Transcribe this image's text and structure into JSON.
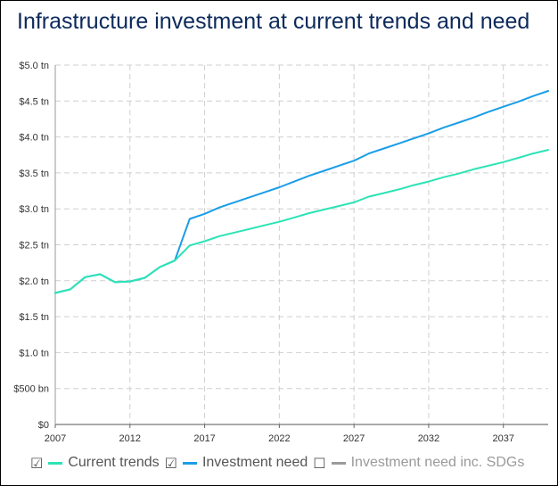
{
  "title": "Infrastructure investment at current trends and need",
  "legend": [
    {
      "label": "Current trends",
      "checkbox": "☑",
      "color": "#2be3b6",
      "active": true
    },
    {
      "label": "Investment need",
      "checkbox": "☑",
      "color": "#1a9de8",
      "active": true
    },
    {
      "label": "Investment need inc. SDGs",
      "checkbox": "☐",
      "color": "#9a9a9a",
      "active": false
    }
  ],
  "chart_data": {
    "type": "line",
    "title": "Infrastructure investment at current trends and need",
    "xlabel": "",
    "ylabel": "",
    "xlim": [
      2007,
      2040
    ],
    "ylim": [
      0,
      5.0
    ],
    "grid": true,
    "legend_position": "bottom",
    "x_ticks": [
      "2007",
      "2012",
      "2017",
      "2022",
      "2027",
      "2032",
      "2037"
    ],
    "y_ticks": [
      "$0",
      "$500 bn",
      "$1.0 tn",
      "$1.5 tn",
      "$2.0 tn",
      "$2.5 tn",
      "$3.0 tn",
      "$3.5 tn",
      "$4.0 tn",
      "$4.5 tn",
      "$5.0 tn"
    ],
    "x": [
      2007,
      2008,
      2009,
      2010,
      2011,
      2012,
      2013,
      2014,
      2015,
      2016,
      2017,
      2018,
      2019,
      2020,
      2021,
      2022,
      2023,
      2024,
      2025,
      2026,
      2027,
      2028,
      2029,
      2030,
      2031,
      2032,
      2033,
      2034,
      2035,
      2036,
      2037,
      2038,
      2039,
      2040
    ],
    "series": [
      {
        "name": "Current trends",
        "values": [
          1.83,
          1.88,
          2.05,
          2.09,
          1.98,
          1.99,
          2.04,
          2.19,
          2.28,
          2.49,
          2.55,
          2.62,
          2.67,
          2.72,
          2.77,
          2.82,
          2.88,
          2.94,
          2.99,
          3.04,
          3.09,
          3.17,
          3.22,
          3.27,
          3.33,
          3.38,
          3.44,
          3.49,
          3.55,
          3.6,
          3.65,
          3.71,
          3.77,
          3.82
        ]
      },
      {
        "name": "Investment need",
        "values": [
          1.83,
          1.88,
          2.05,
          2.09,
          1.98,
          1.99,
          2.04,
          2.19,
          2.28,
          2.86,
          2.93,
          3.02,
          3.09,
          3.16,
          3.23,
          3.3,
          3.38,
          3.46,
          3.53,
          3.6,
          3.67,
          3.77,
          3.84,
          3.91,
          3.98,
          4.05,
          4.13,
          4.2,
          4.27,
          4.35,
          4.42,
          4.49,
          4.57,
          4.64
        ]
      }
    ]
  }
}
